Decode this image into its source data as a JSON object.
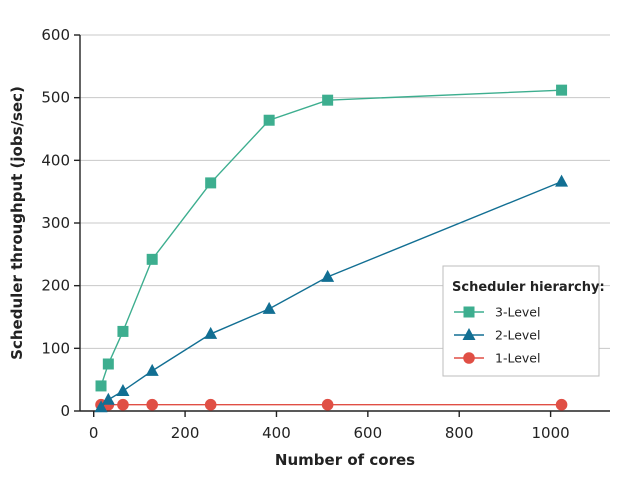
{
  "chart_data": {
    "type": "line",
    "title": "",
    "xlabel": "Number of cores",
    "ylabel": "Scheduler throughput (jobs/sec)",
    "xlim": [
      -30,
      1130
    ],
    "ylim": [
      0,
      600
    ],
    "xticks": [
      0,
      200,
      400,
      600,
      800,
      1000
    ],
    "yticks": [
      0,
      100,
      200,
      300,
      400,
      500,
      600
    ],
    "grid": "horizontal",
    "legend_title": "Scheduler hierarchy:",
    "legend_position": "center-right",
    "series": [
      {
        "name": "3-Level",
        "color": "#3dae8f",
        "marker": "square",
        "x": [
          16,
          32,
          64,
          128,
          256,
          384,
          512,
          1024
        ],
        "y": [
          40,
          75,
          127,
          242,
          364,
          464,
          496,
          512
        ]
      },
      {
        "name": "2-Level",
        "color": "#126f93",
        "marker": "triangle",
        "x": [
          16,
          32,
          64,
          128,
          256,
          384,
          512,
          1024
        ],
        "y": [
          6,
          18,
          32,
          64,
          123,
          163,
          214,
          366
        ]
      },
      {
        "name": "1-Level",
        "color": "#e04f45",
        "marker": "circle",
        "x": [
          16,
          32,
          64,
          128,
          256,
          512,
          1024
        ],
        "y": [
          10,
          10,
          10,
          10,
          10,
          10,
          10
        ]
      }
    ]
  }
}
